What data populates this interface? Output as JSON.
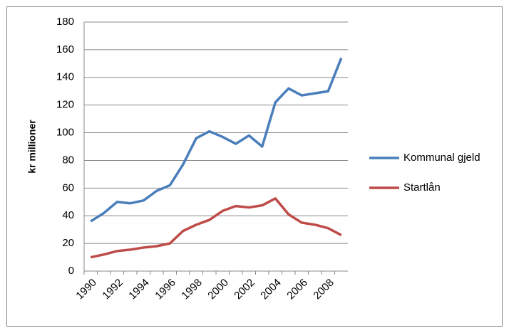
{
  "chart_data": {
    "type": "line",
    "y_label": "kr millioner",
    "categories": [
      "1990",
      null,
      "1992",
      null,
      "1994",
      null,
      "1996",
      null,
      "1998",
      null,
      "2000",
      null,
      "2002",
      null,
      "2004",
      null,
      "2006",
      null,
      "2008",
      null
    ],
    "series": [
      {
        "name": "Kommunal gjeld",
        "color": "#4a7ebb",
        "values": [
          36,
          42,
          50,
          49,
          51,
          58,
          62,
          77,
          96,
          101,
          97,
          92,
          98,
          90,
          122,
          132,
          127,
          128.5,
          130,
          154
        ]
      },
      {
        "name": "Startlån",
        "color": "#be4b48",
        "values": [
          10,
          12,
          14.5,
          15.5,
          17,
          18,
          20,
          29,
          33.5,
          37,
          43.5,
          47,
          46,
          47.5,
          52.5,
          41,
          35,
          33.5,
          31,
          26
        ]
      }
    ],
    "ylim": [
      0,
      180
    ],
    "yticks": [
      0,
      20,
      40,
      60,
      80,
      100,
      120,
      140,
      160,
      180
    ],
    "grid": true,
    "legend": "right"
  }
}
